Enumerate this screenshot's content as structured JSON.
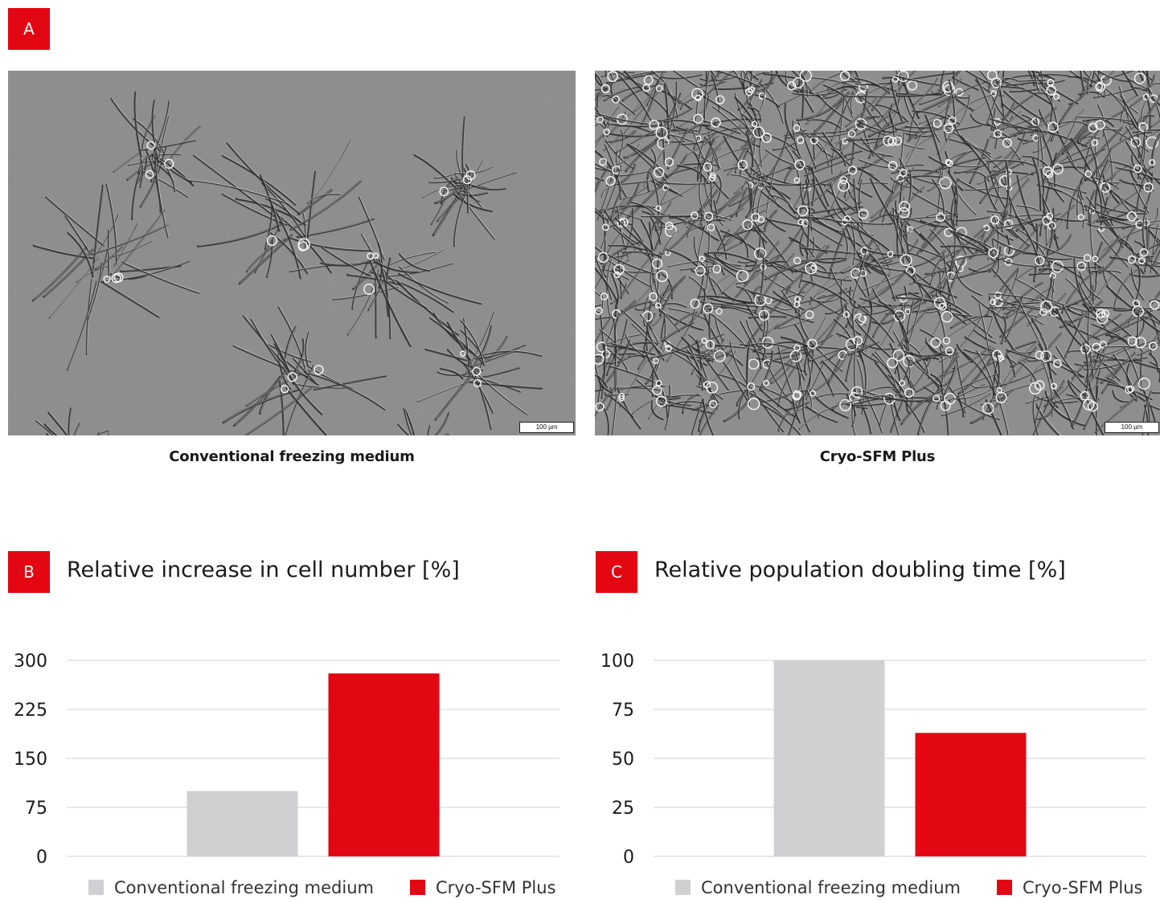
{
  "panel_a": {
    "badge": "A",
    "left_caption": "Conventional freezing medium",
    "right_caption": "Cryo-SFM Plus",
    "scale_label": "100 µm"
  },
  "panel_b": {
    "badge": "B",
    "title": "Relative increase in cell number [%]"
  },
  "panel_c": {
    "badge": "C",
    "title": "Relative population doubling time [%]"
  },
  "colors": {
    "accent": "#e30613",
    "conventional": "#d0d0d2",
    "cryo": "#e30613",
    "grid": "#d9d9d9"
  },
  "chart_data": [
    {
      "type": "bar",
      "title": "Relative increase in cell number [%]",
      "categories": [
        "Conventional freezing medium",
        "Cryo-SFM Plus"
      ],
      "values": [
        100,
        280
      ],
      "ylim": [
        0,
        300
      ],
      "yticks": [
        "0",
        "75",
        "150",
        "225",
        "300"
      ],
      "grid": true,
      "legend": "bottom",
      "legend_entries": [
        "Conventional freezing medium",
        "Cryo-SFM Plus"
      ]
    },
    {
      "type": "bar",
      "title": "Relative population doubling time [%]",
      "categories": [
        "Conventional freezing medium",
        "Cryo-SFM Plus"
      ],
      "values": [
        100,
        63
      ],
      "ylim": [
        0,
        100
      ],
      "yticks": [
        "0",
        "25",
        "50",
        "75",
        "100"
      ],
      "grid": true,
      "legend": "bottom",
      "legend_entries": [
        "Conventional freezing medium",
        "Cryo-SFM Plus"
      ]
    }
  ]
}
